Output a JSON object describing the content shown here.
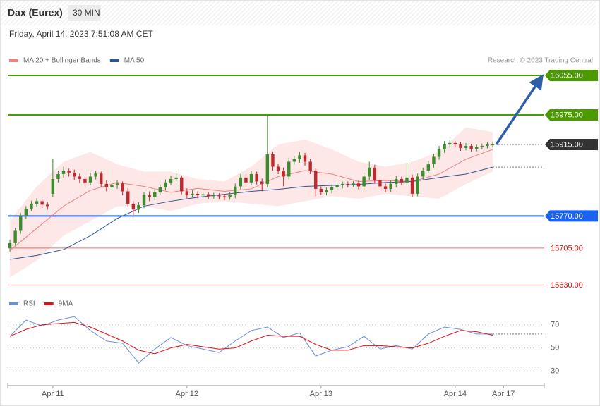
{
  "chart_data": {
    "type": "candlestick",
    "title": "Dax (Eurex)",
    "interval": "30 MIN",
    "subtitle": "Friday, April 14, 2023 7:51:08 AM CET",
    "credit": "Research © 2023 Trading Central",
    "xlim": [
      -0.4,
      99.6
    ],
    "xticks": [
      {
        "value": 8,
        "label": "Apr 11"
      },
      {
        "value": 33,
        "label": "Apr 12"
      },
      {
        "value": 58,
        "label": "Apr 13"
      },
      {
        "value": 83,
        "label": "Apr 14"
      },
      {
        "value": 92,
        "label": "Apr 17"
      }
    ],
    "ylim": [
      15622,
      16065
    ],
    "up_color": "#3c8c2f",
    "down_color": "#c0282d",
    "open": [
      15705,
      15715,
      15740,
      15770,
      15785,
      15795,
      15800,
      15793,
      15815,
      15845,
      15855,
      15862,
      15858,
      15850,
      15845,
      15838,
      15850,
      15856,
      15835,
      15828,
      15832,
      15836,
      15820,
      15795,
      15783,
      15792,
      15812,
      15808,
      15818,
      15828,
      15838,
      15845,
      15848,
      15820,
      15813,
      15815,
      15812,
      15814,
      15810,
      15812,
      15810,
      15808,
      15812,
      15830,
      15848,
      15838,
      15855,
      15840,
      15835,
      15895,
      15870,
      15862,
      15850,
      15880,
      15885,
      15893,
      15880,
      15862,
      15825,
      15818,
      15822,
      15828,
      15832,
      15835,
      15834,
      15836,
      15830,
      15850,
      15868,
      15842,
      15830,
      15825,
      15835,
      15845,
      15838,
      15848,
      15815,
      15850,
      15862,
      15875,
      15890,
      15905,
      15915,
      15918,
      15915,
      15908,
      15912,
      15906,
      15910,
      15912,
      15915
    ],
    "high": [
      15722,
      15746,
      15776,
      15790,
      15801,
      15806,
      15804,
      15798,
      15886,
      15862,
      15870,
      15866,
      15864,
      15856,
      15850,
      15858,
      15862,
      15860,
      15842,
      15838,
      15842,
      15840,
      15826,
      15800,
      15798,
      15818,
      15820,
      15824,
      15834,
      15844,
      15852,
      15856,
      15852,
      15826,
      15822,
      15820,
      15819,
      15818,
      15817,
      15816,
      15815,
      15818,
      15836,
      15855,
      15854,
      15862,
      15860,
      15846,
      15975,
      15900,
      15876,
      15868,
      15888,
      15892,
      15900,
      15898,
      15886,
      15866,
      15830,
      15828,
      15834,
      15838,
      15840,
      15840,
      15841,
      15842,
      15858,
      15880,
      15874,
      15848,
      15836,
      15842,
      15852,
      15850,
      15878,
      15854,
      15856,
      15868,
      15882,
      15896,
      15912,
      15922,
      15924,
      15922,
      15920,
      15918,
      15916,
      15915,
      15917,
      15920,
      15919
    ],
    "low": [
      15698,
      15710,
      15734,
      15764,
      15780,
      15788,
      15786,
      15783,
      15808,
      15838,
      15848,
      15850,
      15843,
      15838,
      15830,
      15832,
      15844,
      15828,
      15820,
      15822,
      15825,
      15812,
      15788,
      15772,
      15776,
      15786,
      15800,
      15802,
      15812,
      15822,
      15832,
      15840,
      15814,
      15806,
      15808,
      15806,
      15807,
      15804,
      15805,
      15804,
      15802,
      15803,
      15806,
      15824,
      15830,
      15832,
      15834,
      15820,
      15828,
      15862,
      15855,
      15830,
      15844,
      15874,
      15878,
      15872,
      15855,
      15810,
      15812,
      15812,
      15816,
      15822,
      15826,
      15828,
      15829,
      15824,
      15824,
      15842,
      15836,
      15822,
      15818,
      15819,
      15828,
      15832,
      15832,
      15808,
      15810,
      15844,
      15856,
      15868,
      15884,
      15898,
      15908,
      15910,
      15902,
      15903,
      15900,
      15901,
      15905,
      15907,
      15910
    ],
    "close": [
      15715,
      15740,
      15770,
      15785,
      15795,
      15800,
      15793,
      15790,
      15845,
      15855,
      15862,
      15858,
      15850,
      15845,
      15838,
      15850,
      15856,
      15835,
      15828,
      15832,
      15836,
      15820,
      15795,
      15783,
      15792,
      15812,
      15808,
      15818,
      15828,
      15838,
      15845,
      15848,
      15820,
      15813,
      15815,
      15812,
      15814,
      15810,
      15812,
      15810,
      15808,
      15812,
      15830,
      15848,
      15838,
      15855,
      15840,
      15835,
      15895,
      15870,
      15862,
      15850,
      15880,
      15885,
      15893,
      15880,
      15862,
      15825,
      15818,
      15822,
      15828,
      15832,
      15835,
      15834,
      15836,
      15830,
      15850,
      15868,
      15842,
      15830,
      15825,
      15835,
      15845,
      15838,
      15848,
      15815,
      15850,
      15862,
      15875,
      15890,
      15905,
      15915,
      15918,
      15915,
      15908,
      15912,
      15906,
      15910,
      15912,
      15915,
      15915
    ],
    "overlays": {
      "x": [
        0,
        5,
        10,
        15,
        20,
        25,
        30,
        35,
        40,
        45,
        50,
        55,
        60,
        65,
        70,
        75,
        80,
        85,
        90
      ],
      "band_color": "#fde3e3",
      "series": [
        {
          "name": "MA 20 + Bollinger Bands",
          "color": "#f08080",
          "values": [
            15700,
            15745,
            15790,
            15822,
            15838,
            15830,
            15818,
            15826,
            15820,
            15825,
            15850,
            15862,
            15855,
            15840,
            15842,
            15840,
            15855,
            15885,
            15905
          ],
          "upper": [
            15760,
            15830,
            15880,
            15900,
            15875,
            15860,
            15860,
            15845,
            15840,
            15870,
            15915,
            15925,
            15905,
            15880,
            15870,
            15880,
            15900,
            15950,
            15940
          ],
          "lower": [
            15645,
            15680,
            15730,
            15760,
            15790,
            15790,
            15780,
            15795,
            15800,
            15795,
            15790,
            15800,
            15810,
            15805,
            15815,
            15810,
            15805,
            15835,
            15860
          ]
        },
        {
          "name": "MA 50",
          "color": "#2f5597",
          "values": [
            15682,
            15690,
            15702,
            15730,
            15765,
            15790,
            15800,
            15808,
            15814,
            15820,
            15824,
            15830,
            15832,
            15834,
            15838,
            15840,
            15848,
            15855,
            15869
          ]
        }
      ]
    },
    "levels": [
      {
        "value": 16055,
        "label": "16055.00",
        "color": "#4a9a00",
        "style": "box",
        "line": "solid"
      },
      {
        "value": 15975,
        "label": "15975.00",
        "color": "#4a9a00",
        "style": "box",
        "line": "solid"
      },
      {
        "value": 15915,
        "label": "15915.00",
        "color": "#333333",
        "style": "box",
        "line": "dotted"
      },
      {
        "value": 15770,
        "label": "15770.00",
        "color": "#1a62f0",
        "style": "box",
        "line": "solid"
      },
      {
        "value": 15705,
        "label": "15705.00",
        "color": "#e01010",
        "style": "text",
        "line": "solid"
      },
      {
        "value": 15630,
        "label": "15630.00",
        "color": "#e01010",
        "style": "text",
        "line": "solid"
      }
    ],
    "rsi": {
      "x": [
        0,
        3,
        6,
        9,
        12,
        15,
        18,
        21,
        24,
        27,
        30,
        33,
        36,
        39,
        42,
        45,
        48,
        51,
        54,
        57,
        60,
        63,
        66,
        69,
        72,
        75,
        78,
        81,
        84,
        87,
        90
      ],
      "ylim": [
        20,
        85
      ],
      "yticks": [
        30,
        50,
        70
      ],
      "series": [
        {
          "name": "RSI",
          "color": "#6a8fe0",
          "values": [
            60,
            74,
            69,
            74,
            77,
            65,
            56,
            54,
            37,
            49,
            59,
            52,
            49,
            46,
            56,
            65,
            68,
            59,
            63,
            43,
            48,
            51,
            60,
            49,
            52,
            49,
            62,
            68,
            66,
            62,
            62
          ]
        },
        {
          "name": "9MA",
          "color": "#e01010",
          "values": [
            60,
            66,
            70,
            71,
            72,
            68,
            62,
            56,
            48,
            45,
            50,
            53,
            51,
            49,
            50,
            56,
            61,
            60,
            60,
            53,
            48,
            48,
            52,
            52,
            51,
            50,
            54,
            60,
            65,
            64,
            61
          ]
        }
      ]
    }
  }
}
